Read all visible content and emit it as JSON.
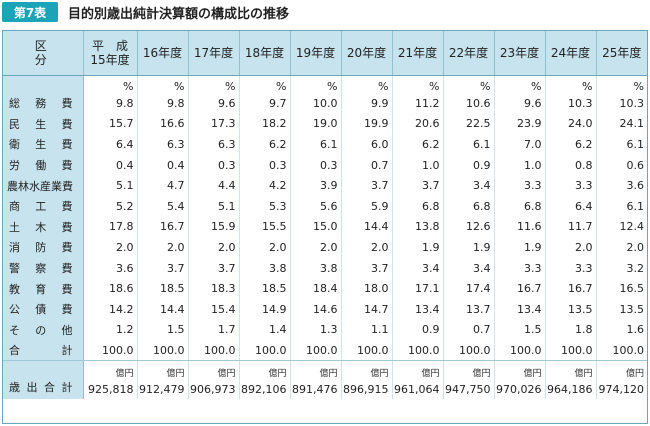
{
  "title": {
    "tag": "第7表",
    "text": "目的別歳出純計決算額の構成比の推移"
  },
  "columns": [
    "区　分",
    "平　成\n15年度",
    "16年度",
    "17年度",
    "18年度",
    "19年度",
    "20年度",
    "21年度",
    "22年度",
    "23年度",
    "24年度",
    "25年度"
  ],
  "unit_percent": "%",
  "rows": [
    {
      "label": "総務費",
      "values": [
        "9.8",
        "9.8",
        "9.6",
        "9.7",
        "10.0",
        "9.9",
        "11.2",
        "10.6",
        "9.6",
        "10.3",
        "10.3"
      ]
    },
    {
      "label": "民生費",
      "values": [
        "15.7",
        "16.6",
        "17.3",
        "18.2",
        "19.0",
        "19.9",
        "20.6",
        "22.5",
        "23.9",
        "24.0",
        "24.1"
      ]
    },
    {
      "label": "衛生費",
      "values": [
        "6.4",
        "6.3",
        "6.3",
        "6.2",
        "6.1",
        "6.0",
        "6.2",
        "6.1",
        "7.0",
        "6.2",
        "6.1"
      ]
    },
    {
      "label": "労働費",
      "values": [
        "0.4",
        "0.4",
        "0.3",
        "0.3",
        "0.3",
        "0.7",
        "1.0",
        "0.9",
        "1.0",
        "0.8",
        "0.6"
      ]
    },
    {
      "label": "農林水産業費",
      "values": [
        "5.1",
        "4.7",
        "4.4",
        "4.2",
        "3.9",
        "3.7",
        "3.7",
        "3.4",
        "3.3",
        "3.3",
        "3.6"
      ]
    },
    {
      "label": "商工費",
      "values": [
        "5.2",
        "5.4",
        "5.1",
        "5.3",
        "5.6",
        "5.9",
        "6.8",
        "6.8",
        "6.8",
        "6.4",
        "6.1"
      ]
    },
    {
      "label": "土木費",
      "values": [
        "17.8",
        "16.7",
        "15.9",
        "15.5",
        "15.0",
        "14.4",
        "13.8",
        "12.6",
        "11.6",
        "11.7",
        "12.4"
      ]
    },
    {
      "label": "消防費",
      "values": [
        "2.0",
        "2.0",
        "2.0",
        "2.0",
        "2.0",
        "2.0",
        "1.9",
        "1.9",
        "1.9",
        "2.0",
        "2.0"
      ]
    },
    {
      "label": "警察費",
      "values": [
        "3.6",
        "3.7",
        "3.7",
        "3.8",
        "3.8",
        "3.7",
        "3.4",
        "3.4",
        "3.3",
        "3.3",
        "3.2"
      ]
    },
    {
      "label": "教育費",
      "values": [
        "18.6",
        "18.5",
        "18.3",
        "18.5",
        "18.4",
        "18.0",
        "17.1",
        "17.4",
        "16.7",
        "16.7",
        "16.5"
      ]
    },
    {
      "label": "公債費",
      "values": [
        "14.2",
        "14.4",
        "15.4",
        "14.9",
        "14.6",
        "14.7",
        "13.4",
        "13.7",
        "13.4",
        "13.5",
        "13.5"
      ]
    },
    {
      "label": "その他",
      "values": [
        "1.2",
        "1.5",
        "1.7",
        "1.4",
        "1.3",
        "1.1",
        "0.9",
        "0.7",
        "1.5",
        "1.8",
        "1.6"
      ]
    },
    {
      "label": "合計",
      "values": [
        "100.0",
        "100.0",
        "100.0",
        "100.0",
        "100.0",
        "100.0",
        "100.0",
        "100.0",
        "100.0",
        "100.0",
        "100.0"
      ]
    }
  ],
  "total_row": {
    "label": "歳出合計",
    "unit": "億円",
    "values": [
      "925,818",
      "912,479",
      "906,973",
      "892,106",
      "891,476",
      "896,915",
      "961,064",
      "947,750",
      "970,026",
      "964,186",
      "974,120"
    ]
  }
}
